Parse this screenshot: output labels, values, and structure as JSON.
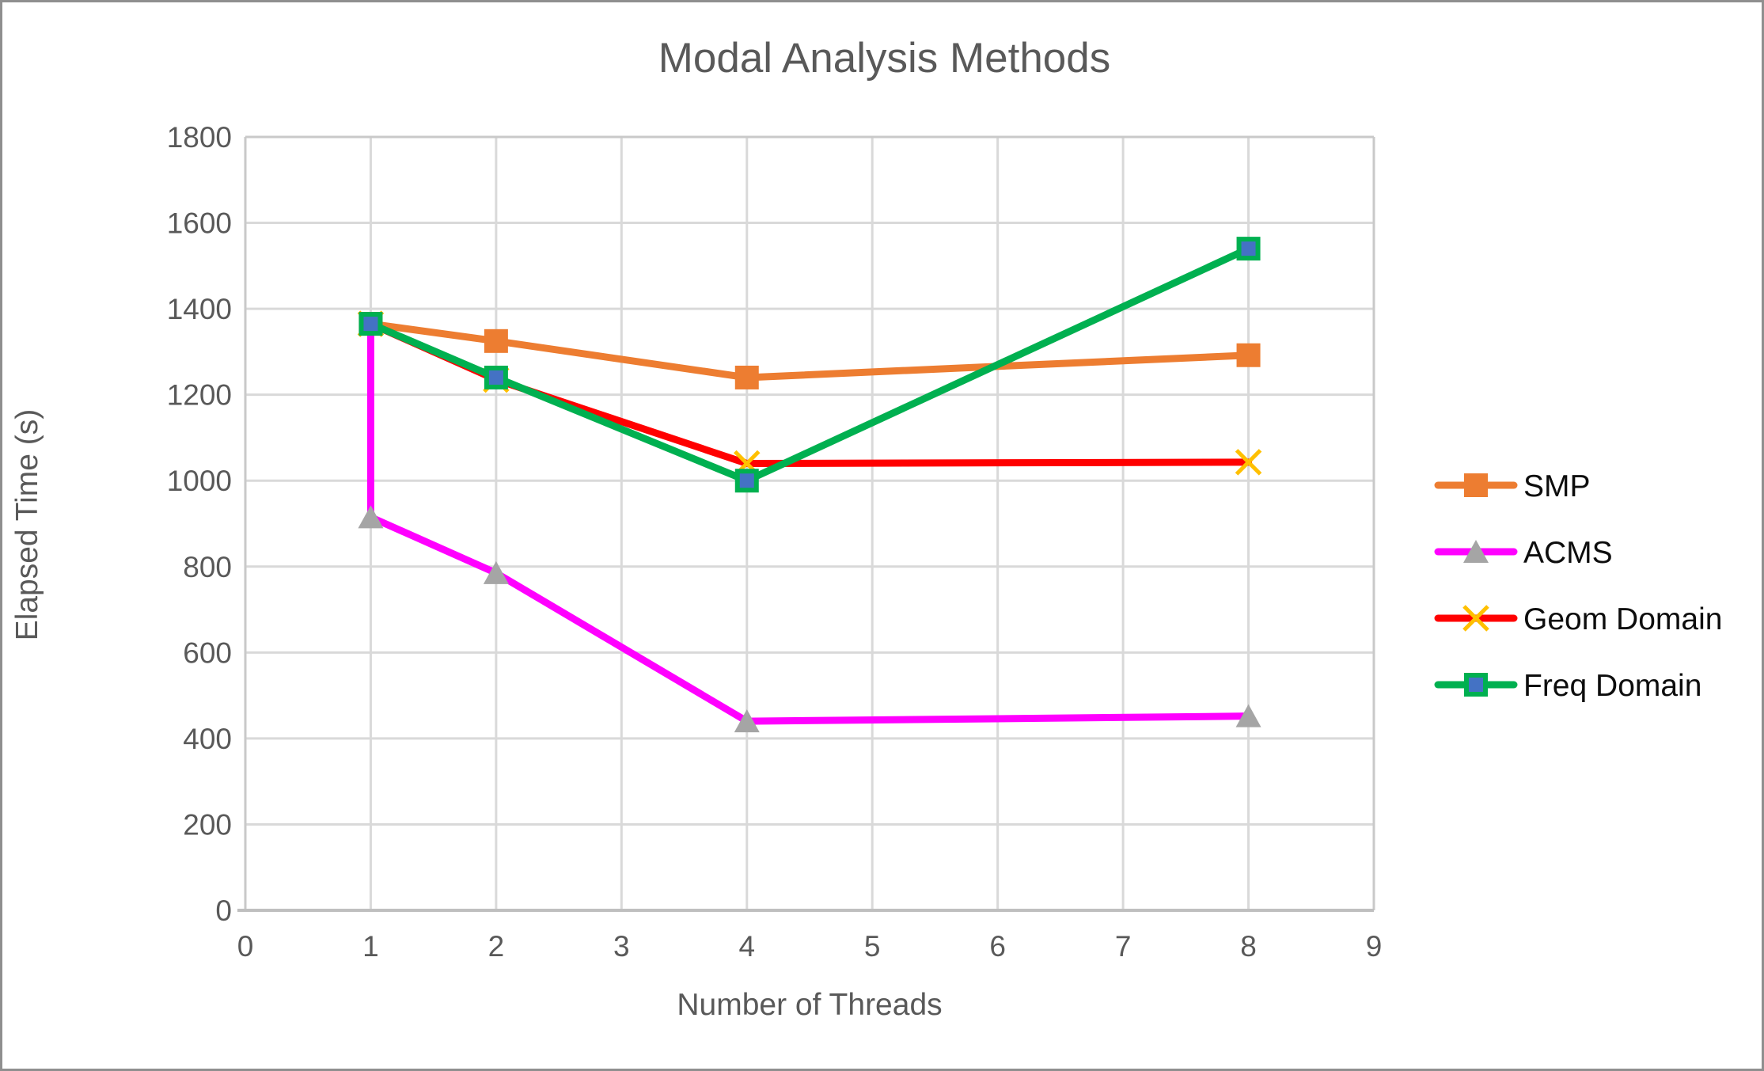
{
  "chart_data": {
    "type": "line",
    "title": "Modal Analysis Methods",
    "xlabel": "Number of Threads",
    "ylabel": "Elapsed Time (s)",
    "xlim": [
      0,
      9
    ],
    "ylim": [
      0,
      1800
    ],
    "x_ticks": [
      0,
      1,
      2,
      3,
      4,
      5,
      6,
      7,
      8,
      9
    ],
    "y_ticks": [
      0,
      200,
      400,
      600,
      800,
      1000,
      1200,
      1400,
      1600,
      1800
    ],
    "grid": true,
    "legend_position": "right-middle",
    "series": [
      {
        "name": "SMP",
        "color": "#ED7D31",
        "marker": "square",
        "marker_color": "#ED7D31",
        "x": [
          1,
          2,
          4,
          8
        ],
        "values": [
          1365,
          1325,
          1240,
          1292
        ]
      },
      {
        "name": "ACMS",
        "color": "#FF00FF",
        "marker": "triangle",
        "marker_color": "#A5A5A5",
        "x": [
          1,
          1,
          2,
          4,
          8
        ],
        "values": [
          1365,
          915,
          785,
          440,
          452
        ],
        "marker_skip_first": true
      },
      {
        "name": "Geom Domain",
        "color": "#FF0000",
        "marker": "x",
        "marker_color": "#FFC000",
        "x": [
          1,
          2,
          4,
          8
        ],
        "values": [
          1365,
          1235,
          1040,
          1043
        ]
      },
      {
        "name": "Freq Domain",
        "color": "#00B050",
        "marker": "square-outlined",
        "marker_fill": "#4472C4",
        "marker_color": "#00B050",
        "x": [
          1,
          2,
          4,
          8
        ],
        "values": [
          1365,
          1240,
          1000,
          1540
        ]
      }
    ],
    "colors": {
      "gridline": "#D9D9D9",
      "plot_border": "#C9C9C9",
      "axis_line": "#BFBFBF",
      "text": "#595959",
      "legend_text": "#0d0d0d"
    }
  }
}
